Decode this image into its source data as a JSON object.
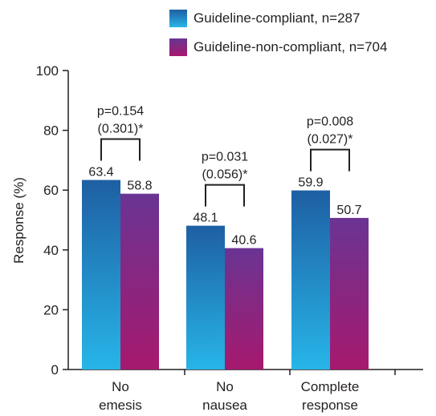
{
  "chart_data": {
    "type": "bar",
    "title": "",
    "xlabel": "",
    "ylabel": "Response (%)",
    "ylim": [
      0,
      100
    ],
    "yticks": [
      "0",
      "20",
      "40",
      "60",
      "80",
      "100"
    ],
    "categories": [
      [
        "No",
        "emesis"
      ],
      [
        "No",
        "nausea"
      ],
      [
        "Complete",
        "response"
      ]
    ],
    "series": [
      {
        "name": "Guideline-compliant, n=287",
        "values": [
          63.4,
          48.1,
          59.9
        ],
        "labels": [
          "63.4",
          "48.1",
          "59.9"
        ],
        "color_top": "#1e5fa3",
        "color_bottom": "#27b5e8"
      },
      {
        "name": "Guideline-non-compliant, n=704",
        "values": [
          58.8,
          40.6,
          50.7
        ],
        "labels": [
          "58.8",
          "40.6",
          "50.7"
        ],
        "color_top": "#6a3493",
        "color_bottom": "#a6196e"
      }
    ],
    "annotations": [
      {
        "category": 0,
        "lines": [
          "p=0.154",
          "(0.301)*"
        ]
      },
      {
        "category": 1,
        "lines": [
          "p=0.031",
          "(0.056)*"
        ]
      },
      {
        "category": 2,
        "lines": [
          "p=0.008",
          "(0.027)*"
        ]
      }
    ],
    "grid": false,
    "legend_position": "top-right"
  }
}
